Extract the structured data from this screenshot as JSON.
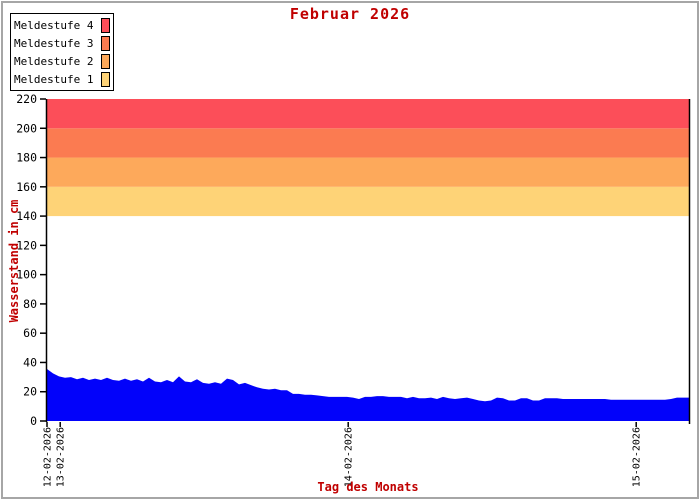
{
  "chart_data": {
    "type": "area",
    "title": "Februar 2026",
    "xlabel": "Tag des Monats",
    "ylabel": "Wasserstand in cm",
    "ylim": [
      0,
      220
    ],
    "y_ticks": [
      0,
      20,
      40,
      60,
      80,
      100,
      120,
      140,
      160,
      180,
      200,
      220
    ],
    "grid": false,
    "x_unit": "hours since start of record (approx. 12-02-2026 23:00)",
    "t_end": 53.5,
    "t_step": 0.5,
    "x_ticks": [
      {
        "label": "12-02-2026",
        "t": 0.0
      },
      {
        "label": "13-02-2026",
        "t": 1.1
      },
      {
        "label": "14-02-2026",
        "t": 25.1
      },
      {
        "label": "15-02-2026",
        "t": 49.1
      }
    ],
    "series": [
      {
        "name": "Wasserstand",
        "unit": "cm",
        "color": "#0202fa",
        "values": [
          35.5,
          32.5,
          30.5,
          29.5,
          30.0,
          28.5,
          29.5,
          28.0,
          29.0,
          28.0,
          29.5,
          28.0,
          27.5,
          29.0,
          27.5,
          28.5,
          27.0,
          29.5,
          27.0,
          26.5,
          28.0,
          26.5,
          30.5,
          27.0,
          26.5,
          28.5,
          26.0,
          25.5,
          26.5,
          25.5,
          29.0,
          28.0,
          25.0,
          26.0,
          24.5,
          23.0,
          22.0,
          21.5,
          22.0,
          21.0,
          21.0,
          18.5,
          18.5,
          18.0,
          18.0,
          17.5,
          17.0,
          16.5,
          16.5,
          16.5,
          16.5,
          16.0,
          15.0,
          16.5,
          16.5,
          17.0,
          17.0,
          16.5,
          16.5,
          16.5,
          15.5,
          16.5,
          15.5,
          15.5,
          16.0,
          15.0,
          16.5,
          15.5,
          15.0,
          15.5,
          16.0,
          15.0,
          14.0,
          13.5,
          14.0,
          16.0,
          15.5,
          14.0,
          14.0,
          15.5,
          15.5,
          14.0,
          14.0,
          15.5,
          15.5,
          15.5,
          15.0,
          15.0,
          15.0,
          15.0,
          15.0,
          15.0,
          15.0,
          15.0,
          14.5,
          14.5,
          14.5,
          14.5,
          14.5,
          14.5,
          14.5,
          14.5,
          14.5,
          14.5,
          15.0,
          16.0,
          16.0,
          16.0
        ]
      }
    ],
    "threshold_bands": [
      {
        "label": "Meldestufe 1",
        "from": 140,
        "to": 160,
        "color": "#fed377"
      },
      {
        "label": "Meldestufe 2",
        "from": 160,
        "to": 180,
        "color": "#fda95b"
      },
      {
        "label": "Meldestufe 3",
        "from": 180,
        "to": 200,
        "color": "#fb7b51"
      },
      {
        "label": "Meldestufe 4",
        "from": 200,
        "to": 220,
        "color": "#fc4e59"
      }
    ],
    "legend": {
      "position": "top-left",
      "items": [
        {
          "label": "Meldestufe 4",
          "color": "#fc4e59"
        },
        {
          "label": "Meldestufe 3",
          "color": "#fb7b51"
        },
        {
          "label": "Meldestufe 2",
          "color": "#fda95b"
        },
        {
          "label": "Meldestufe 1",
          "color": "#fed377"
        }
      ]
    }
  },
  "colors": {
    "title_text": "#c00000",
    "axis_text": "#000000",
    "axis_line": "#000000",
    "series_fill": "#0202fa",
    "frame_border": "#a6a6a6",
    "background": "#ffffff"
  }
}
